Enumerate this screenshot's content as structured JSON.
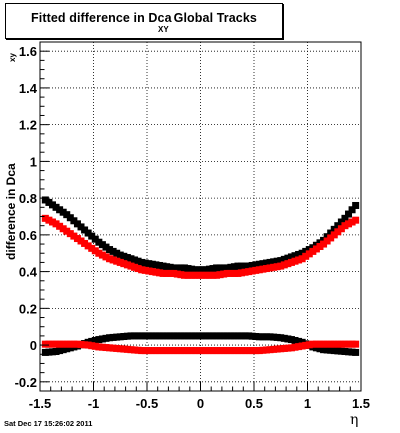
{
  "title": {
    "main": "Fitted difference in Dca",
    "subscript": "XY",
    "suffix": "Global Tracks"
  },
  "footer": {
    "date": "Sat Dec 17 15:26:02 2011"
  },
  "chart_data": {
    "type": "scatter",
    "title": "Fitted difference in Dca XY Global Tracks",
    "xlabel": "η",
    "ylabel": "difference in Dca XY",
    "xlim": [
      -1.5,
      1.5
    ],
    "ylim": [
      -0.25,
      1.65
    ],
    "grid": true,
    "x_ticks": [
      "-1.5",
      "-1",
      "-0.5",
      "0",
      "0.5",
      "1",
      "1.5"
    ],
    "x_tick_values": [
      -1.5,
      -1,
      -0.5,
      0,
      0.5,
      1,
      1.5
    ],
    "y_ticks": [
      "-0.2",
      "0",
      "0.2",
      "0.4",
      "0.6",
      "0.8",
      "1",
      "1.2",
      "1.4",
      "1.6"
    ],
    "y_tick_values": [
      -0.2,
      0,
      0.2,
      0.4,
      0.6,
      0.8,
      1,
      1.2,
      1.4,
      1.6
    ],
    "x": [
      -1.45,
      -1.35,
      -1.25,
      -1.15,
      -1.05,
      -0.95,
      -0.85,
      -0.75,
      -0.65,
      -0.55,
      -0.45,
      -0.35,
      -0.25,
      -0.15,
      -0.05,
      0.05,
      0.15,
      0.25,
      0.35,
      0.45,
      0.55,
      0.65,
      0.75,
      0.85,
      0.95,
      1.05,
      1.15,
      1.25,
      1.35,
      1.45
    ],
    "series": [
      {
        "color": "#000000",
        "values": [
          0.79,
          0.75,
          0.71,
          0.66,
          0.61,
          0.56,
          0.52,
          0.49,
          0.47,
          0.45,
          0.44,
          0.43,
          0.42,
          0.42,
          0.41,
          0.41,
          0.42,
          0.42,
          0.43,
          0.43,
          0.44,
          0.45,
          0.46,
          0.48,
          0.5,
          0.53,
          0.57,
          0.63,
          0.69,
          0.76
        ]
      },
      {
        "color": "#ff0000",
        "values": [
          0.69,
          0.66,
          0.62,
          0.58,
          0.54,
          0.5,
          0.47,
          0.45,
          0.43,
          0.41,
          0.4,
          0.39,
          0.39,
          0.38,
          0.38,
          0.38,
          0.38,
          0.39,
          0.39,
          0.4,
          0.41,
          0.42,
          0.43,
          0.45,
          0.47,
          0.51,
          0.55,
          0.6,
          0.65,
          0.68
        ]
      },
      {
        "color": "#000000",
        "values": [
          -0.04,
          -0.035,
          -0.02,
          -0.005,
          0.015,
          0.03,
          0.04,
          0.045,
          0.05,
          0.05,
          0.05,
          0.05,
          0.05,
          0.05,
          0.05,
          0.05,
          0.05,
          0.05,
          0.05,
          0.05,
          0.045,
          0.045,
          0.04,
          0.03,
          0.015,
          -0.01,
          -0.025,
          -0.03,
          -0.035,
          -0.04
        ]
      },
      {
        "color": "#ff0000",
        "values": [
          0.005,
          0.005,
          0.005,
          0.005,
          0.0,
          -0.01,
          -0.015,
          -0.02,
          -0.025,
          -0.03,
          -0.03,
          -0.03,
          -0.03,
          -0.03,
          -0.03,
          -0.03,
          -0.03,
          -0.03,
          -0.03,
          -0.03,
          -0.03,
          -0.025,
          -0.02,
          -0.015,
          -0.005,
          0.005,
          0.005,
          0.005,
          0.005,
          0.005
        ]
      }
    ]
  }
}
